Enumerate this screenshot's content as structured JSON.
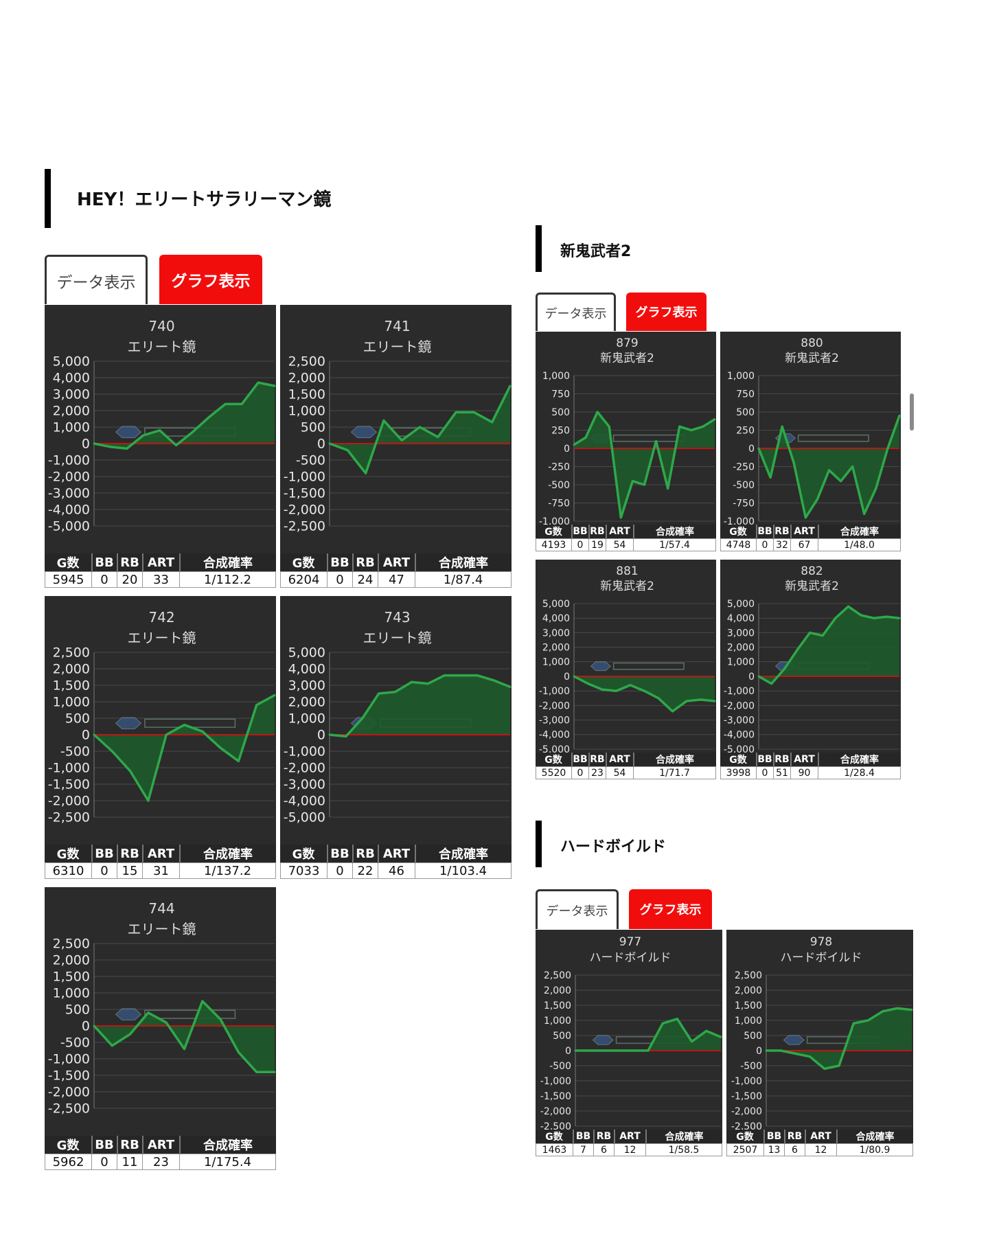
{
  "colors": {
    "line": "#2ea84a",
    "fill": "#1e5a2a",
    "zero": "#c01515",
    "tab_active": "#f20d0d",
    "panel": "#2b2b2b"
  },
  "stat_headers": [
    "G数",
    "BB",
    "RB",
    "ART",
    "合成確率"
  ],
  "sections": [
    {
      "id": "elite",
      "title": "HEY！エリートサラリーマン鏡",
      "tabs": {
        "data": "データ表示",
        "graph": "グラフ表示"
      },
      "machines": [
        {
          "number": "740",
          "name": "エリート鏡",
          "stats": [
            "5945",
            "0",
            "20",
            "33",
            "1/112.2"
          ]
        },
        {
          "number": "741",
          "name": "エリート鏡",
          "stats": [
            "6204",
            "0",
            "24",
            "47",
            "1/87.4"
          ]
        },
        {
          "number": "742",
          "name": "エリート鏡",
          "stats": [
            "6310",
            "0",
            "15",
            "31",
            "1/137.2"
          ]
        },
        {
          "number": "743",
          "name": "エリート鏡",
          "stats": [
            "7033",
            "0",
            "22",
            "46",
            "1/103.4"
          ]
        },
        {
          "number": "744",
          "name": "エリート鏡",
          "stats": [
            "5962",
            "0",
            "11",
            "23",
            "1/175.4"
          ]
        }
      ]
    },
    {
      "id": "onimusha",
      "title": "新鬼武者2",
      "tabs": {
        "data": "データ表示",
        "graph": "グラフ表示"
      },
      "machines": [
        {
          "number": "879",
          "name": "新鬼武者2",
          "stats": [
            "4193",
            "0",
            "19",
            "54",
            "1/57.4"
          ]
        },
        {
          "number": "880",
          "name": "新鬼武者2",
          "stats": [
            "4748",
            "0",
            "32",
            "67",
            "1/48.0"
          ]
        },
        {
          "number": "881",
          "name": "新鬼武者2",
          "stats": [
            "5520",
            "0",
            "23",
            "54",
            "1/71.7"
          ]
        },
        {
          "number": "882",
          "name": "新鬼武者2",
          "stats": [
            "3998",
            "0",
            "51",
            "90",
            "1/28.4"
          ]
        }
      ]
    },
    {
      "id": "hardboiled",
      "title": "ハードボイルド",
      "tabs": {
        "data": "データ表示",
        "graph": "グラフ表示"
      },
      "machines": [
        {
          "number": "977",
          "name": "ハードボイルド",
          "stats": [
            "1463",
            "7",
            "6",
            "12",
            "1/58.5"
          ]
        },
        {
          "number": "978",
          "name": "ハードボイルド",
          "stats": [
            "2507",
            "13",
            "6",
            "12",
            "1/80.9"
          ]
        }
      ]
    }
  ],
  "chart_data": [
    {
      "type": "area",
      "machine": "740",
      "ylim": [
        -5000,
        5000
      ],
      "yticks": [
        "5,000",
        "4,000",
        "3,000",
        "2,000",
        "1,000",
        "0",
        "-1,000",
        "-2,000",
        "-3,000",
        "-4,000",
        "-5,000"
      ],
      "values": [
        0,
        -200,
        -300,
        500,
        800,
        -100,
        700,
        1600,
        2400,
        2400,
        3700,
        3500
      ]
    },
    {
      "type": "area",
      "machine": "741",
      "ylim": [
        -2500,
        2500
      ],
      "yticks": [
        "2,500",
        "2,000",
        "1,500",
        "1,000",
        "500",
        "0",
        "-500",
        "-1,000",
        "-1,500",
        "-2,000",
        "-2,500"
      ],
      "values": [
        0,
        -200,
        -900,
        700,
        100,
        500,
        200,
        950,
        950,
        650,
        1750
      ]
    },
    {
      "type": "area",
      "machine": "742",
      "ylim": [
        -2500,
        2500
      ],
      "yticks": [
        "2,500",
        "2,000",
        "1,500",
        "1,000",
        "500",
        "0",
        "-500",
        "-1,000",
        "-1,500",
        "-2,000",
        "-2,500"
      ],
      "values": [
        0,
        -500,
        -1100,
        -2000,
        0,
        300,
        100,
        -400,
        -800,
        900,
        1200
      ]
    },
    {
      "type": "area",
      "machine": "743",
      "ylim": [
        -5000,
        5000
      ],
      "yticks": [
        "5,000",
        "4,000",
        "3,000",
        "2,000",
        "1,000",
        "0",
        "-1,000",
        "-2,000",
        "-3,000",
        "-4,000",
        "-5,000"
      ],
      "values": [
        0,
        -100,
        1000,
        2500,
        2600,
        3200,
        3100,
        3600,
        3600,
        3600,
        3300,
        2900
      ]
    },
    {
      "type": "area",
      "machine": "744",
      "ylim": [
        -2500,
        2500
      ],
      "yticks": [
        "2,500",
        "2,000",
        "1,500",
        "1,000",
        "500",
        "0",
        "-500",
        "-1,000",
        "-1,500",
        "-2,000",
        "-2,500"
      ],
      "values": [
        0,
        -600,
        -250,
        400,
        100,
        -700,
        750,
        200,
        -800,
        -1400,
        -1400
      ]
    },
    {
      "type": "area",
      "machine": "879",
      "ylim": [
        -1000,
        1000
      ],
      "yticks": [
        "1,000",
        "750",
        "500",
        "250",
        "0",
        "-250",
        "-500",
        "-750",
        "-1,000"
      ],
      "values": [
        50,
        150,
        500,
        300,
        -950,
        -450,
        -500,
        100,
        -550,
        300,
        250,
        300,
        400
      ]
    },
    {
      "type": "area",
      "machine": "880",
      "ylim": [
        -1000,
        1000
      ],
      "yticks": [
        "1,000",
        "750",
        "500",
        "250",
        "0",
        "-250",
        "-500",
        "-750",
        "-1,000"
      ],
      "values": [
        0,
        -400,
        300,
        -200,
        -950,
        -700,
        -300,
        -450,
        -250,
        -900,
        -550,
        0,
        450
      ]
    },
    {
      "type": "area",
      "machine": "881",
      "ylim": [
        -5000,
        5000
      ],
      "yticks": [
        "5,000",
        "4,000",
        "3,000",
        "2,000",
        "1,000",
        "0",
        "-1,000",
        "-2,000",
        "-3,000",
        "-4,000",
        "-5,000"
      ],
      "values": [
        0,
        -500,
        -900,
        -1000,
        -600,
        -1000,
        -1500,
        -2400,
        -1700,
        -1600,
        -1700
      ]
    },
    {
      "type": "area",
      "machine": "882",
      "ylim": [
        -5000,
        5000
      ],
      "yticks": [
        "5,000",
        "4,000",
        "3,000",
        "2,000",
        "1,000",
        "0",
        "-1,000",
        "-2,000",
        "-3,000",
        "-4,000",
        "-5,000"
      ],
      "values": [
        0,
        -500,
        500,
        1800,
        3000,
        2800,
        4000,
        4800,
        4200,
        4000,
        4100,
        4000
      ]
    },
    {
      "type": "area",
      "machine": "977",
      "ylim": [
        -2500,
        2500
      ],
      "yticks": [
        "2,500",
        "2,000",
        "1,500",
        "1,000",
        "500",
        "0",
        "-500",
        "-1,000",
        "-1,500",
        "-2,000",
        "-2,500"
      ],
      "values": [
        0,
        0,
        0,
        0,
        0,
        0,
        900,
        1050,
        300,
        650,
        450
      ]
    },
    {
      "type": "area",
      "machine": "978",
      "ylim": [
        -2500,
        2500
      ],
      "yticks": [
        "2,500",
        "2,000",
        "1,500",
        "1,000",
        "500",
        "0",
        "-500",
        "-1,000",
        "-1,500",
        "-2,000",
        "-2,500"
      ],
      "values": [
        0,
        0,
        -100,
        -200,
        -600,
        -500,
        900,
        1000,
        1300,
        1400,
        1350
      ]
    }
  ]
}
